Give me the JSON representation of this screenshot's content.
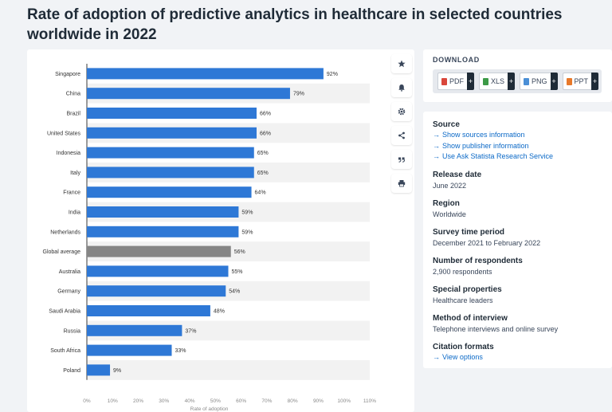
{
  "title": "Rate of adoption of predictive analytics in healthcare in selected countries worldwide in 2022",
  "toolbar": {
    "icons": [
      "star-icon",
      "bell-icon",
      "gear-icon",
      "share-icon",
      "quote-icon",
      "print-icon"
    ]
  },
  "download": {
    "title": "DOWNLOAD",
    "buttons": [
      {
        "label": "PDF",
        "color": "#d9463b"
      },
      {
        "label": "XLS",
        "color": "#3c9a47"
      },
      {
        "label": "PNG",
        "color": "#4b8fd6"
      },
      {
        "label": "PPT",
        "color": "#e8792a"
      }
    ],
    "plus": "+"
  },
  "info": {
    "source_label": "Source",
    "source_links": [
      "Show sources information",
      "Show publisher information",
      "Use Ask Statista Research Service"
    ],
    "release_label": "Release date",
    "release_value": "June 2022",
    "region_label": "Region",
    "region_value": "Worldwide",
    "survey_label": "Survey time period",
    "survey_value": "December 2021 to February 2022",
    "respondents_label": "Number of respondents",
    "respondents_value": "2,900 respondents",
    "special_label": "Special properties",
    "special_value": "Healthcare leaders",
    "method_label": "Method of interview",
    "method_value": "Telephone interviews and online survey",
    "citation_label": "Citation formats",
    "citation_link": "View options"
  },
  "chart_data": {
    "type": "bar",
    "orientation": "horizontal",
    "categories": [
      "Singapore",
      "China",
      "Brazil",
      "United States",
      "Indonesia",
      "Italy",
      "France",
      "India",
      "Netherlands",
      "Global average",
      "Australia",
      "Germany",
      "Saudi Arabia",
      "Russia",
      "South Africa",
      "Poland"
    ],
    "values": [
      92,
      79,
      66,
      66,
      65,
      65,
      64,
      59,
      59,
      56,
      55,
      54,
      48,
      37,
      33,
      9
    ],
    "data_labels": [
      "92%",
      "79%",
      "66%",
      "66%",
      "65%",
      "65%",
      "64%",
      "59%",
      "59%",
      "56%",
      "55%",
      "54%",
      "48%",
      "37%",
      "33%",
      "9%"
    ],
    "highlight": "Global average",
    "bar_color": "#2e78d6",
    "highlight_color": "#858585",
    "xlabel": "Rate of adoption",
    "xlim": [
      0,
      110
    ],
    "xticks": [
      0,
      10,
      20,
      30,
      40,
      50,
      60,
      70,
      80,
      90,
      100,
      110
    ],
    "xtick_labels": [
      "0%",
      "10%",
      "20%",
      "30%",
      "40%",
      "50%",
      "60%",
      "70%",
      "80%",
      "90%",
      "100%",
      "110%"
    ],
    "grid": "alternating row bands"
  }
}
